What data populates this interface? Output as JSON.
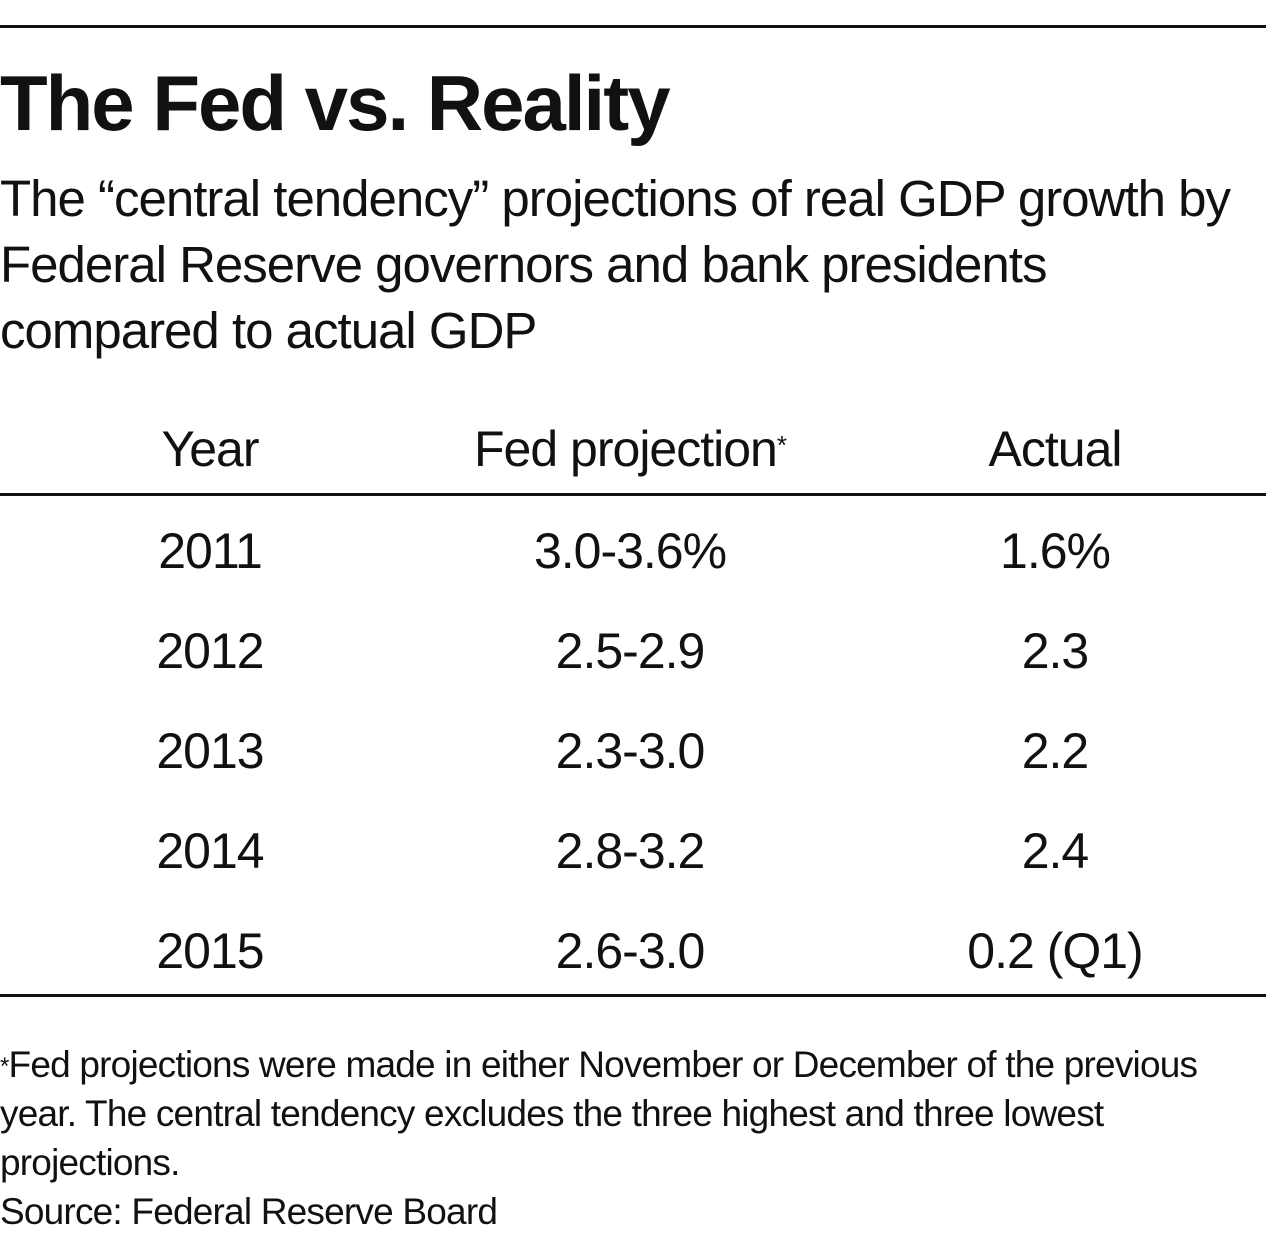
{
  "chart_data": {
    "type": "table",
    "title": "The Fed vs. Reality",
    "subtitle": "The “central tendency” projections of real GDP growth by Federal Reserve governors and bank presidents compared to actual GDP",
    "columns": [
      "Year",
      "Fed projection",
      "Actual"
    ],
    "header_marker": "*",
    "rows": [
      {
        "year": "2011",
        "fed_projection": "3.0-3.6%",
        "actual": "1.6%"
      },
      {
        "year": "2012",
        "fed_projection": "2.5-2.9",
        "actual": "2.3"
      },
      {
        "year": "2013",
        "fed_projection": "2.3-3.0",
        "actual": "2.2"
      },
      {
        "year": "2014",
        "fed_projection": "2.8-3.2",
        "actual": "2.4"
      },
      {
        "year": "2015",
        "fed_projection": "2.6-3.0",
        "actual": "0.2 (Q1)"
      }
    ],
    "footnote_marker": "*",
    "footnote": "Fed projections were made in either November or December of the previous year. The central tendency excludes the three highest and three lowest projections.",
    "source": "Source: Federal Reserve Board"
  }
}
